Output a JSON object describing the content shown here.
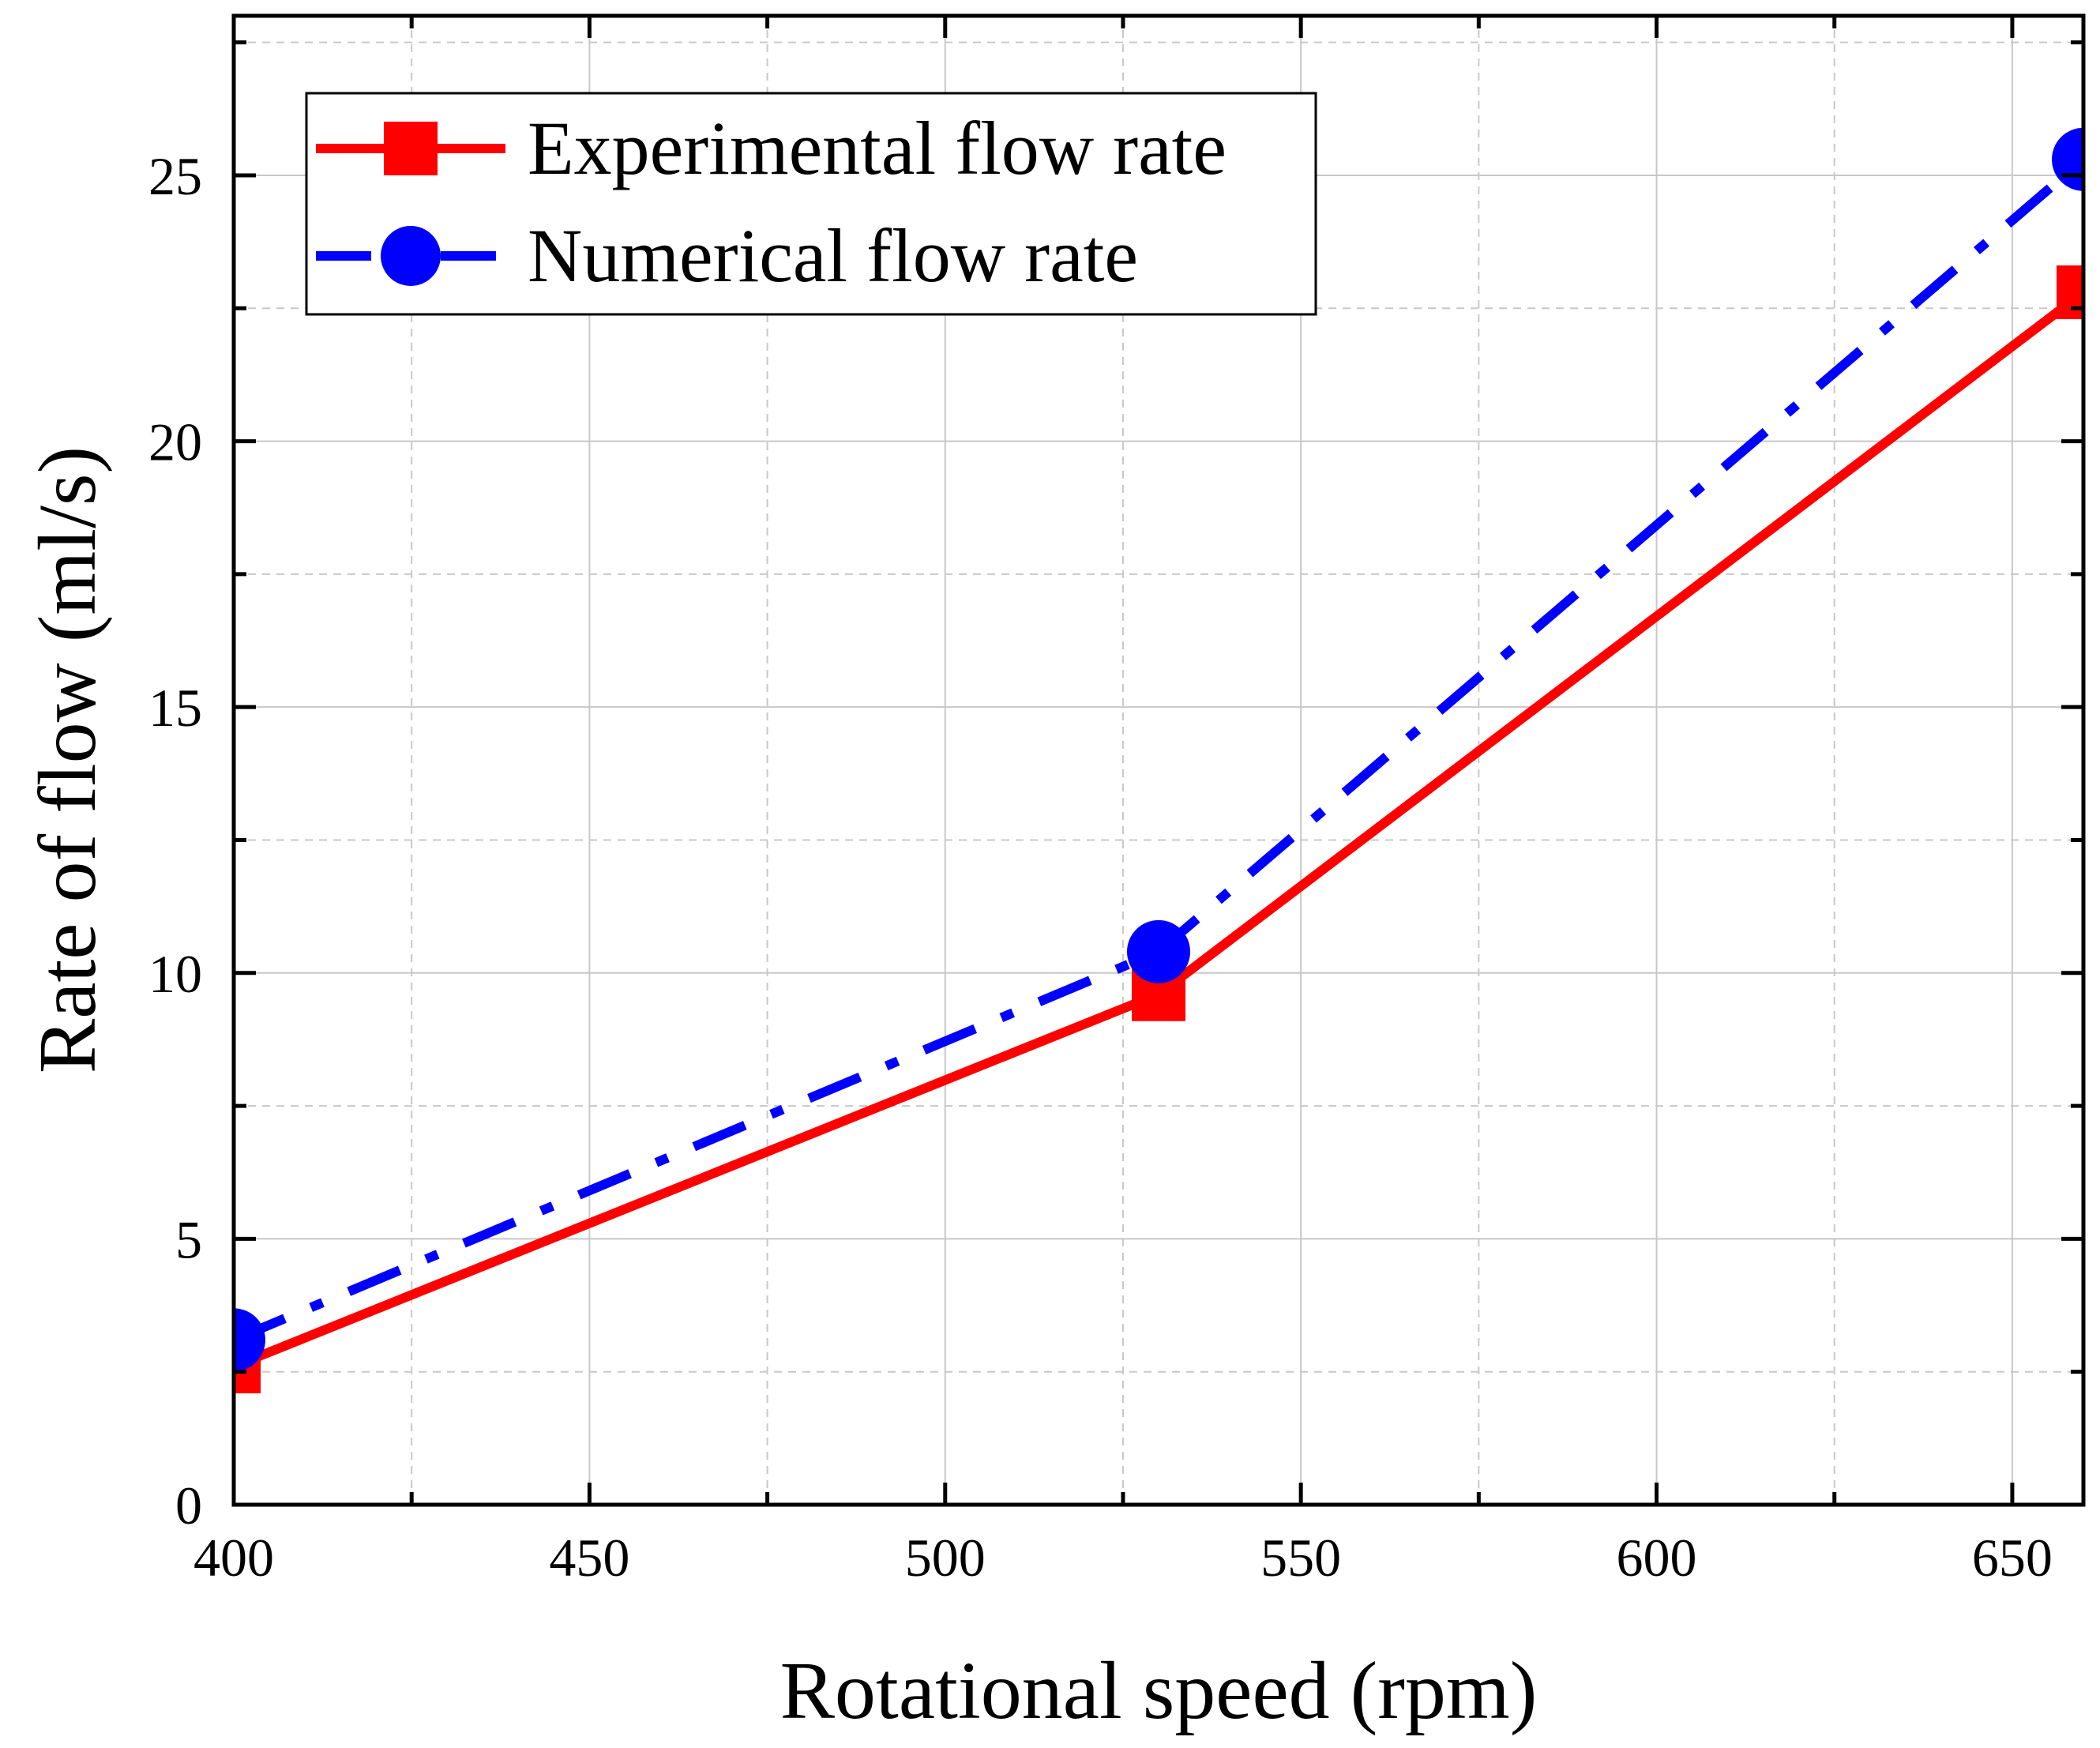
{
  "chart_data": {
    "type": "line",
    "title": "",
    "xlabel": "Rotational speed (rpm)",
    "ylabel": "Rate of flow (ml/s)",
    "xlim": [
      400,
      660
    ],
    "ylim": [
      0,
      28
    ],
    "x_ticks": [
      400,
      450,
      500,
      550,
      600,
      650
    ],
    "x_tick_labels": [
      "400",
      "450",
      "500",
      "550",
      "600",
      "650"
    ],
    "x_minor_ticks": [
      425,
      475,
      525,
      575,
      625
    ],
    "y_ticks": [
      0,
      5,
      10,
      15,
      20,
      25
    ],
    "y_tick_labels": [
      "0",
      "5",
      "10",
      "15",
      "20",
      "25"
    ],
    "y_minor_ticks": [
      2.5,
      7.5,
      12.5,
      17.5,
      22.5,
      27.5
    ],
    "grid": true,
    "legend_position": "top-left",
    "series": [
      {
        "name": "Experimental flow rate",
        "color": "#ff0000",
        "line_style": "solid",
        "marker": "square",
        "x": [
          400,
          530,
          660
        ],
        "y": [
          2.6,
          9.6,
          22.8
        ]
      },
      {
        "name": "Numerical flow rate",
        "color": "#0000ff",
        "line_style": "dash-dot",
        "marker": "circle",
        "x": [
          400,
          530,
          660
        ],
        "y": [
          3.1,
          10.4,
          25.3
        ]
      }
    ]
  }
}
